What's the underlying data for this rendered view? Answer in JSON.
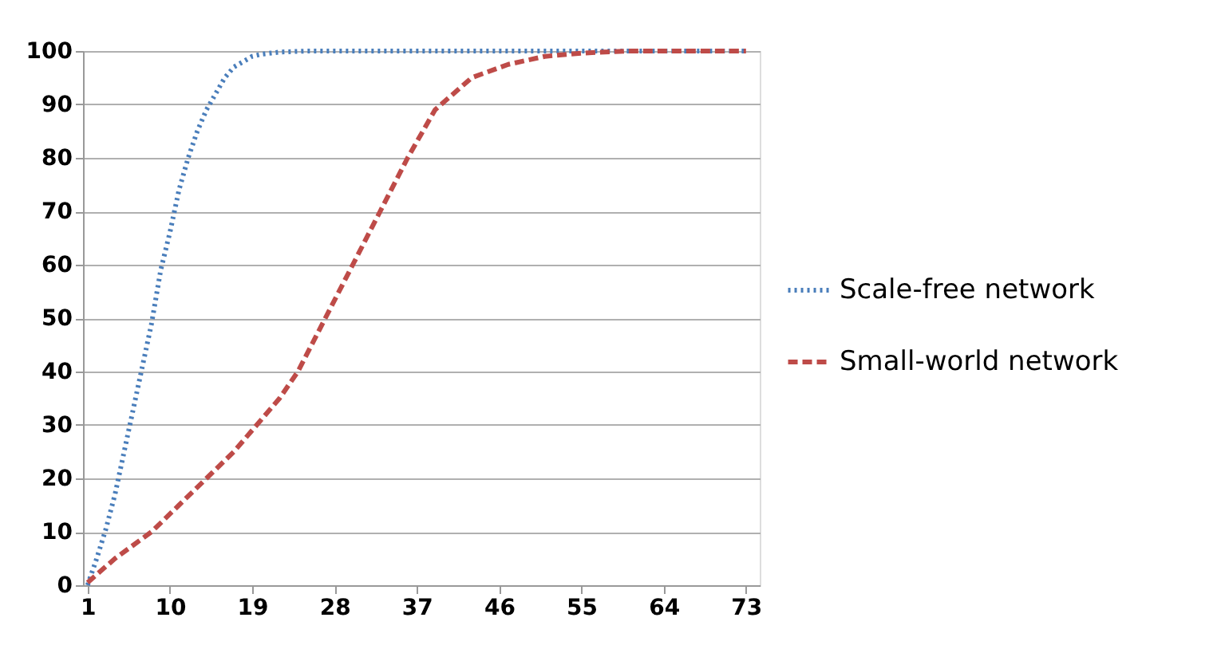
{
  "chart_data": {
    "type": "line",
    "xlim": [
      0.5,
      74.5
    ],
    "xticks": [
      1,
      10,
      19,
      28,
      37,
      46,
      55,
      64,
      73
    ],
    "ylim": [
      0,
      100
    ],
    "yticks": [
      0,
      10,
      20,
      30,
      40,
      50,
      60,
      70,
      80,
      90,
      100
    ],
    "grid": "y",
    "legend": "right",
    "series": [
      {
        "name": "Scale-free network",
        "color": "#4a7ebb",
        "line_style": "dotted",
        "x": [
          1,
          2,
          3,
          4,
          5,
          6,
          7,
          8,
          9,
          10,
          11,
          12,
          13,
          14,
          15,
          16,
          17,
          18,
          19,
          20,
          22,
          25,
          30,
          40,
          50,
          60,
          73
        ],
        "values": [
          0,
          5,
          10.5,
          17,
          25,
          33,
          41,
          49,
          59,
          66,
          74,
          80,
          85,
          89,
          92,
          95,
          97,
          98,
          99,
          99.4,
          99.8,
          100,
          100,
          100,
          100,
          100,
          100
        ]
      },
      {
        "name": "Small-world network",
        "color": "#be4b48",
        "line_style": "dashed",
        "x": [
          1,
          4,
          8,
          11,
          14,
          17,
          19.5,
          22,
          24,
          27,
          30,
          33,
          36,
          39,
          43,
          47,
          51,
          55,
          60,
          73
        ],
        "values": [
          0.5,
          5,
          10,
          15,
          20,
          25,
          30,
          35,
          40,
          50,
          60,
          70,
          80,
          89,
          95,
          97.5,
          99,
          99.6,
          100,
          100
        ]
      }
    ]
  }
}
